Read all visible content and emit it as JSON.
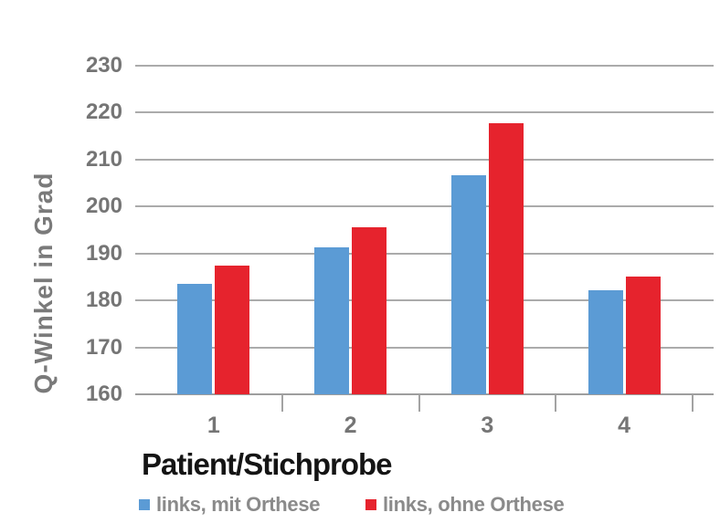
{
  "chart_data": {
    "type": "bar",
    "categories": [
      "1",
      "2",
      "3",
      "4"
    ],
    "series": [
      {
        "name": "links, mit Orthese",
        "color": "#5B9BD5",
        "values": [
          183.6,
          191.4,
          206.7,
          182.2
        ]
      },
      {
        "name": "links, ohne Orthese",
        "color": "#E6232D",
        "values": [
          187.4,
          195.5,
          217.8,
          185.0
        ]
      }
    ],
    "xlabel": "Patient/Stichprobe",
    "ylabel": "Q-Winkel in Grad",
    "ylim": [
      160,
      230
    ],
    "yticks": [
      160,
      170,
      180,
      190,
      200,
      210,
      220,
      230
    ],
    "grid": true,
    "legend_position": "bottom"
  },
  "colors": {
    "background": "#FFFFFF",
    "gridline": "#ABABAB",
    "axis_text": "#757575",
    "y_title_text": "#7A7A7A",
    "x_title_text": "#141414",
    "legend_text": "#8A8A8A"
  }
}
